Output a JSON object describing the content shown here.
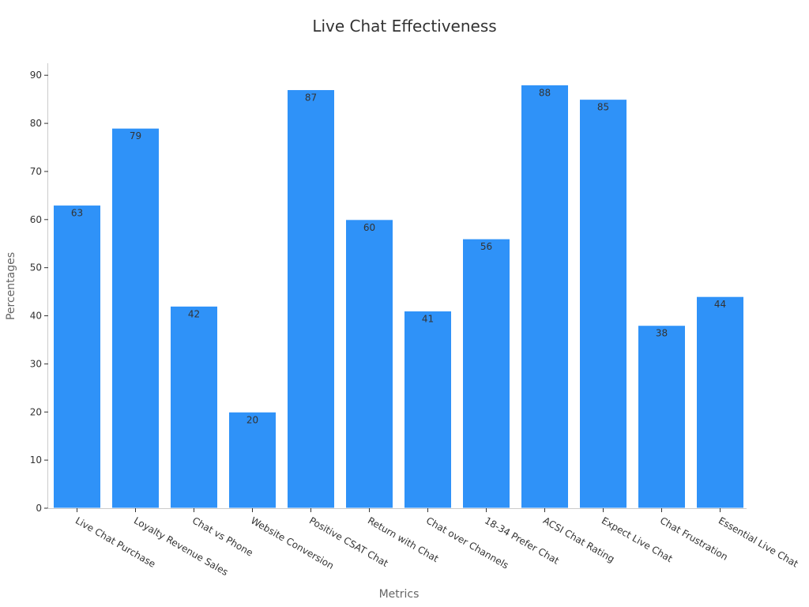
{
  "chart_data": {
    "type": "bar",
    "title": "Live Chat Effectiveness",
    "xlabel": "Metrics",
    "ylabel": "Percentages",
    "categories": [
      "Live Chat Purchase",
      "Loyalty Revenue Sales",
      "Chat vs Phone",
      "Website Conversion",
      "Positive CSAT Chat",
      "Return with Chat",
      "Chat over Channels",
      "18-34 Prefer Chat",
      "ACSI Chat Rating",
      "Expect Live Chat",
      "Chat Frustration",
      "Essential Live Chat"
    ],
    "values": [
      63,
      79,
      42,
      20,
      87,
      60,
      41,
      56,
      88,
      85,
      38,
      44
    ],
    "ylim": [
      0,
      92.5
    ],
    "yticks": [
      0,
      10,
      20,
      30,
      40,
      50,
      60,
      70,
      80,
      90
    ],
    "grid": false,
    "bar_color": "#2f92f8",
    "data_labels": true
  }
}
